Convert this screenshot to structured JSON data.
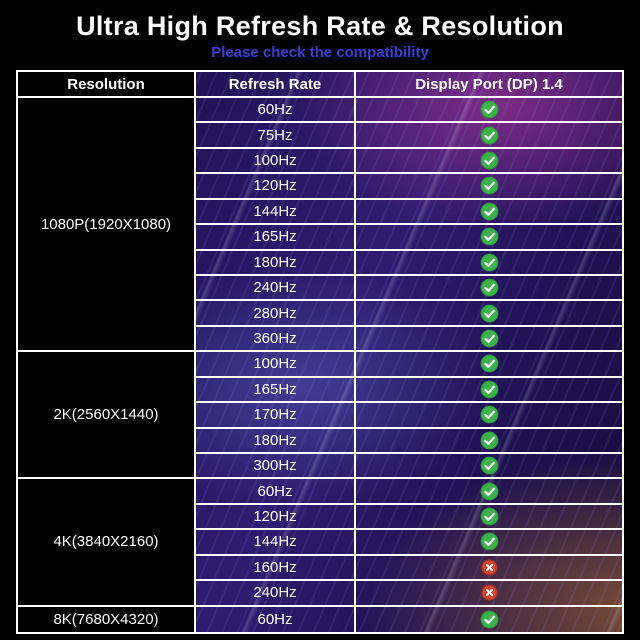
{
  "chart_data": {
    "type": "table",
    "title": "Ultra High Refresh Rate & Resolution",
    "subtitle": "Please check the compatibility",
    "columns": [
      "Resolution",
      "Refresh Rate",
      "Display Port (DP) 1.4"
    ],
    "groups": [
      {
        "resolution": "1080P(1920X1080)",
        "rates": [
          {
            "rate": "60Hz",
            "dp14_supported": true
          },
          {
            "rate": "75Hz",
            "dp14_supported": true
          },
          {
            "rate": "100Hz",
            "dp14_supported": true
          },
          {
            "rate": "120Hz",
            "dp14_supported": true
          },
          {
            "rate": "144Hz",
            "dp14_supported": true
          },
          {
            "rate": "165Hz",
            "dp14_supported": true
          },
          {
            "rate": "180Hz",
            "dp14_supported": true
          },
          {
            "rate": "240Hz",
            "dp14_supported": true
          },
          {
            "rate": "280Hz",
            "dp14_supported": true
          },
          {
            "rate": "360Hz",
            "dp14_supported": true
          }
        ]
      },
      {
        "resolution": "2K(2560X1440)",
        "rates": [
          {
            "rate": "100Hz",
            "dp14_supported": true
          },
          {
            "rate": "165Hz",
            "dp14_supported": true
          },
          {
            "rate": "170Hz",
            "dp14_supported": true
          },
          {
            "rate": "180Hz",
            "dp14_supported": true
          },
          {
            "rate": "300Hz",
            "dp14_supported": true
          }
        ]
      },
      {
        "resolution": "4K(3840X2160)",
        "rates": [
          {
            "rate": "60Hz",
            "dp14_supported": true
          },
          {
            "rate": "120Hz",
            "dp14_supported": true
          },
          {
            "rate": "144Hz",
            "dp14_supported": true
          },
          {
            "rate": "160Hz",
            "dp14_supported": false
          },
          {
            "rate": "240Hz",
            "dp14_supported": false
          }
        ]
      },
      {
        "resolution": "8K(7680X4320)",
        "rates": [
          {
            "rate": "60Hz",
            "dp14_supported": true
          }
        ]
      }
    ]
  },
  "icons": {
    "supported": "check-icon",
    "unsupported": "cross-icon"
  },
  "colors": {
    "subtitle_accent": "#3c3ed8",
    "check_green": "#3cb24b",
    "check_ring": "#2e9c3e",
    "cross_red": "#d8432d",
    "cross_ring": "#b5331f",
    "icon_mark": "#ffffff",
    "table_border": "#ffffff",
    "resolution_cell_bg": "#000000"
  }
}
